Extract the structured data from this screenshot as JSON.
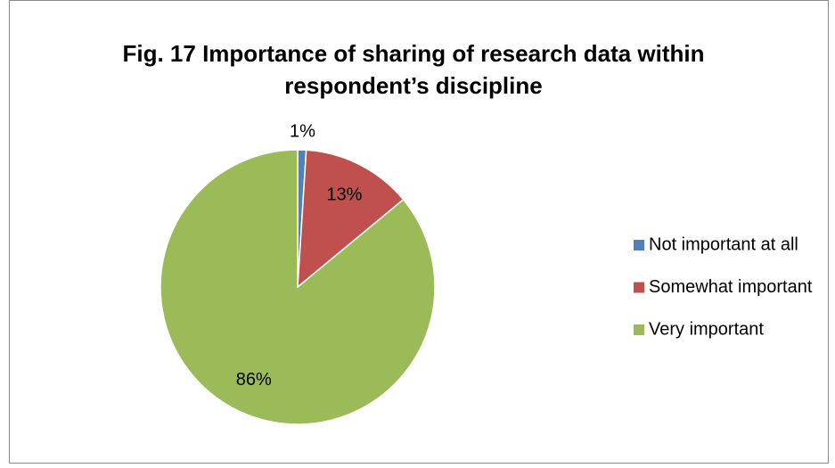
{
  "chart_data": {
    "type": "pie",
    "title": "Fig. 17 Importance of sharing of research data within respondent’s discipline",
    "categories": [
      "Not important at all",
      "Somewhat important",
      "Very important"
    ],
    "values": [
      1,
      13,
      86
    ],
    "value_labels": [
      "1%",
      "13%",
      "86%"
    ],
    "colors": [
      "#4f81bd",
      "#c0504d",
      "#9bbb59"
    ],
    "legend": "right"
  }
}
